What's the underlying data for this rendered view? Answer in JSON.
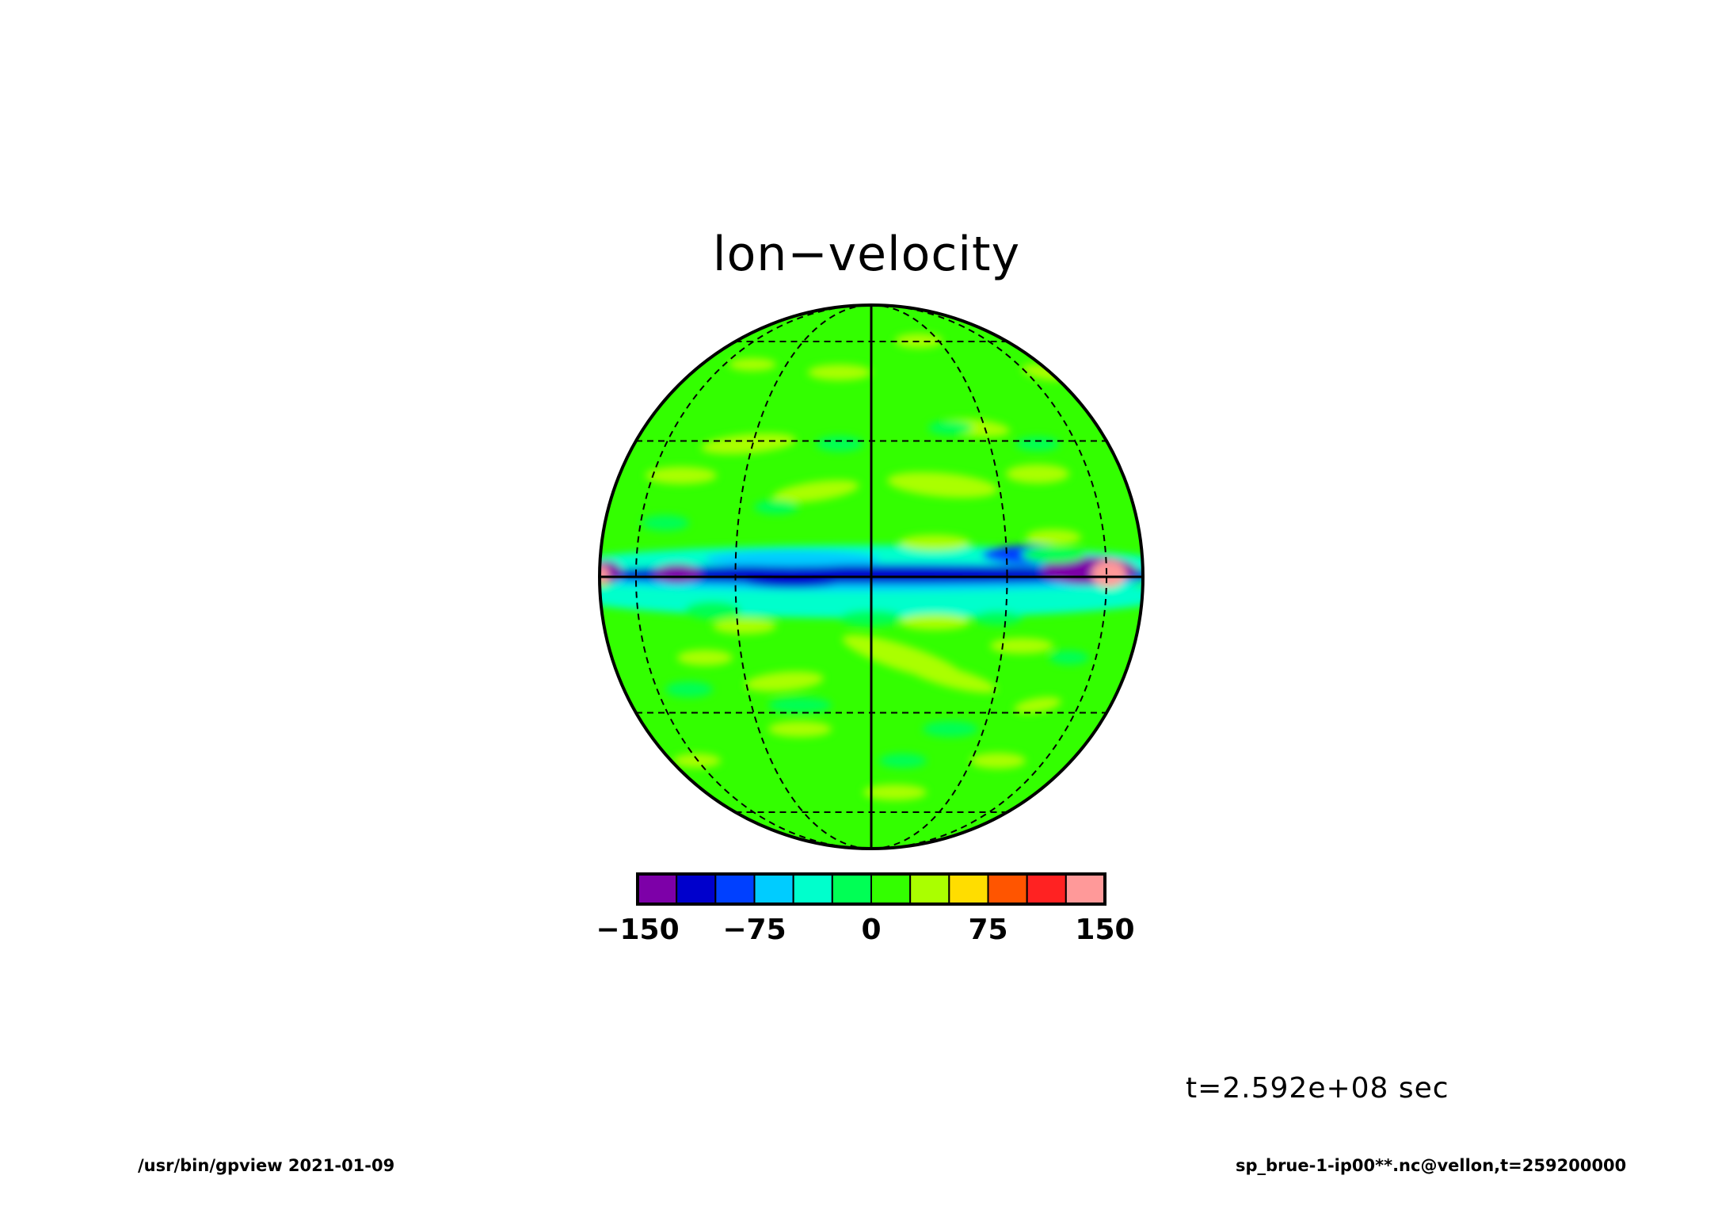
{
  "chart_data": {
    "type": "heatmap",
    "title": "lon−velocity",
    "projection": "orthographic",
    "colorbar": {
      "levels": [
        -150,
        -125,
        -100,
        -75,
        -50,
        -25,
        0,
        25,
        50,
        75,
        100,
        125,
        150
      ],
      "colors": [
        "#7d00a8",
        "#0000cc",
        "#0040ff",
        "#00ccff",
        "#00ffcc",
        "#00ff55",
        "#33ff00",
        "#aaff00",
        "#ffdd00",
        "#ff5500",
        "#ff2222",
        "#ff9999"
      ],
      "tick_labels": [
        "−150",
        "−75",
        "0",
        "75",
        "150"
      ],
      "tick_values": [
        -150,
        -75,
        0,
        75,
        150
      ]
    },
    "grid": true
  },
  "annotation": {
    "time": "t=2.592e+08 sec"
  },
  "footer": {
    "left": "/usr/bin/gpview  2021-01-09",
    "right": "sp_brue-1-ip00**.nc@vellon,t=259200000"
  }
}
